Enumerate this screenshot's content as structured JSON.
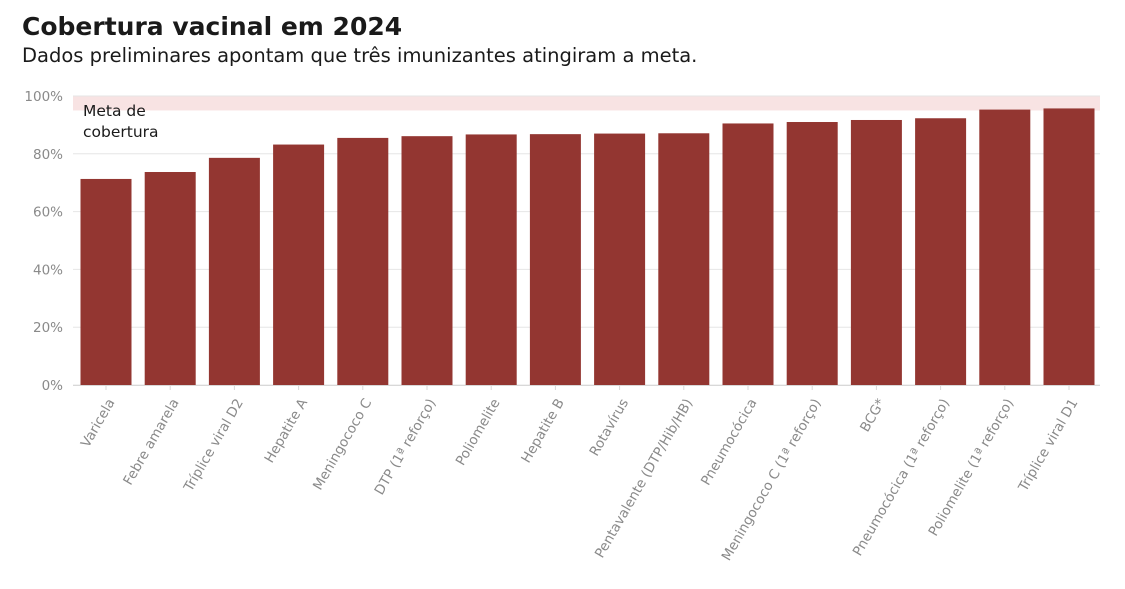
{
  "header": {
    "title": "Cobertura vacinal em 2024",
    "subtitle": "Dados preliminares apontam que três imunizantes atingiram a meta."
  },
  "colors": {
    "bar": "#933631",
    "target_band": "#f8e3e3",
    "grid": "#e6e6e6",
    "text": "#1a1a1a",
    "axis_text": "#8a8a8a"
  },
  "chart_data": {
    "type": "bar",
    "categories": [
      "Varicela",
      "Febre amarela",
      "Tríplice viral D2",
      "Hepatite A",
      "Meningococo C",
      "DTP (1ª reforço)",
      "Poliomelite",
      "Hepatite B",
      "Rotavírus",
      "Pentavalente (DTP/Hib/HB)",
      "Pneumocócica",
      "Meningococo C (1ª reforço)",
      "BCG*",
      "Pneumocócica (1ª reforço)",
      "Poliomelite (1ª reforço)",
      "Tríplice viral D1"
    ],
    "values": [
      71.3,
      73.7,
      78.6,
      83.2,
      85.5,
      86.1,
      86.7,
      86.8,
      87.0,
      87.1,
      90.5,
      91.0,
      91.7,
      92.3,
      95.3,
      95.7
    ],
    "yticks": [
      "0%",
      "20%",
      "40%",
      "60%",
      "80%",
      "100%"
    ],
    "ylim": [
      0,
      100
    ],
    "grid": true,
    "target_band": {
      "from": 95,
      "to": 100,
      "label": [
        "Meta de",
        "cobertura"
      ]
    }
  }
}
